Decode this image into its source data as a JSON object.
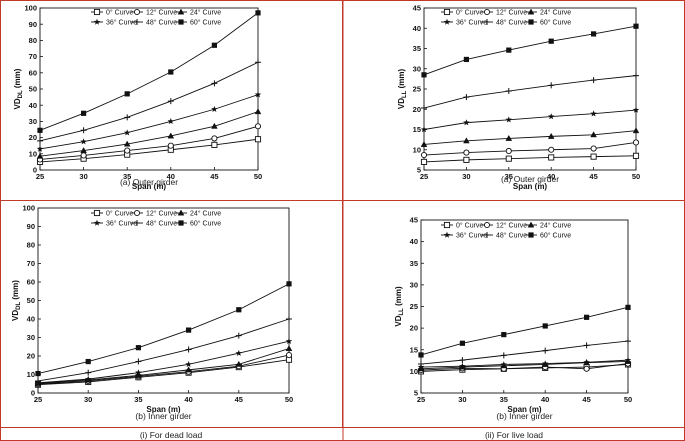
{
  "captions": {
    "dead_load": "(i) For dead load",
    "live_load": "(ii) For live load"
  },
  "chart_data": [
    {
      "type": "line",
      "id": "dead-outer",
      "title": "(a) Outer girder",
      "xlabel": "Span (m)",
      "ylabel": "VD",
      "ylabel_sub": "DL",
      "ylabel_unit": " (mm)",
      "xlim": [
        25,
        50
      ],
      "ylim": [
        0,
        100
      ],
      "xticks": [
        25,
        30,
        35,
        40,
        45,
        50
      ],
      "yticks": [
        0,
        10,
        20,
        30,
        40,
        50,
        60,
        70,
        80,
        90,
        100
      ],
      "x": [
        25,
        30,
        35,
        40,
        45,
        50
      ],
      "series": [
        {
          "name": "0° Curve",
          "marker": "square",
          "values": [
            5,
            7,
            9.5,
            12.5,
            15.5,
            19
          ]
        },
        {
          "name": "12° Curve",
          "marker": "circle",
          "values": [
            6.5,
            9,
            12,
            15,
            19.5,
            27
          ]
        },
        {
          "name": "24° Curve",
          "marker": "triangle",
          "values": [
            8.5,
            12,
            16,
            21,
            27,
            36
          ]
        },
        {
          "name": "36° Curve",
          "marker": "star",
          "values": [
            13,
            17.5,
            23,
            30,
            37.5,
            46.5
          ]
        },
        {
          "name": "48° Curve",
          "marker": "plus",
          "values": [
            18,
            24.5,
            32.5,
            42.5,
            53.5,
            66.5
          ]
        },
        {
          "name": "60° Curve",
          "marker": "filled-square",
          "values": [
            24.5,
            35,
            47,
            60.5,
            77,
            97
          ]
        }
      ]
    },
    {
      "type": "line",
      "id": "live-outer",
      "title": "(a) Outer girder",
      "xlabel": "Span (m)",
      "ylabel": "VD",
      "ylabel_sub": "LL",
      "ylabel_unit": " (mm)",
      "xlim": [
        25,
        50
      ],
      "ylim": [
        5,
        45
      ],
      "xticks": [
        25,
        30,
        35,
        40,
        45,
        50
      ],
      "yticks": [
        5,
        10,
        15,
        20,
        25,
        30,
        35,
        40,
        45
      ],
      "x": [
        25,
        30,
        35,
        40,
        45,
        50
      ],
      "series": [
        {
          "name": "0° Curve",
          "marker": "square",
          "values": [
            7,
            7.5,
            7.8,
            8.1,
            8.3,
            8.5
          ]
        },
        {
          "name": "12° Curve",
          "marker": "circle",
          "values": [
            8.7,
            9.3,
            9.7,
            10,
            10.3,
            11.8
          ]
        },
        {
          "name": "24° Curve",
          "marker": "triangle",
          "values": [
            11.3,
            12.2,
            12.8,
            13.3,
            13.7,
            14.7
          ]
        },
        {
          "name": "36° Curve",
          "marker": "star",
          "values": [
            15,
            16.7,
            17.4,
            18.2,
            18.9,
            19.8
          ]
        },
        {
          "name": "48° Curve",
          "marker": "plus",
          "values": [
            20.3,
            23,
            24.5,
            25.9,
            27.2,
            28.3
          ]
        },
        {
          "name": "60° Curve",
          "marker": "filled-square",
          "values": [
            28.5,
            32.3,
            34.6,
            36.8,
            38.6,
            40.5
          ]
        }
      ]
    },
    {
      "type": "line",
      "id": "dead-inner",
      "title": "(b) Inner girder",
      "xlabel": "Span (m)",
      "ylabel": "VD",
      "ylabel_sub": "DL",
      "ylabel_unit": " (mm)",
      "xlim": [
        25,
        50
      ],
      "ylim": [
        0,
        100
      ],
      "xticks": [
        25,
        30,
        35,
        40,
        45,
        50
      ],
      "yticks": [
        0,
        10,
        20,
        30,
        40,
        50,
        60,
        70,
        80,
        90,
        100
      ],
      "x": [
        25,
        30,
        35,
        40,
        45,
        50
      ],
      "series": [
        {
          "name": "0° Curve",
          "marker": "square",
          "values": [
            4.5,
            6,
            8.5,
            11,
            14,
            18
          ]
        },
        {
          "name": "12° Curve",
          "marker": "circle",
          "values": [
            4.8,
            6.5,
            9,
            11.5,
            14.5,
            20.5
          ]
        },
        {
          "name": "24° Curve",
          "marker": "triangle",
          "values": [
            5.2,
            7,
            9.5,
            12.5,
            15.5,
            24
          ]
        },
        {
          "name": "36° Curve",
          "marker": "star",
          "values": [
            5.5,
            7.5,
            11,
            15.5,
            21.5,
            28
          ]
        },
        {
          "name": "48° Curve",
          "marker": "plus",
          "values": [
            6.5,
            11,
            17,
            23.5,
            31,
            40
          ]
        },
        {
          "name": "60° Curve",
          "marker": "filled-square",
          "values": [
            10.5,
            17,
            24.5,
            34,
            45,
            59
          ]
        }
      ]
    },
    {
      "type": "line",
      "id": "live-inner",
      "title": "(b) Inner girder",
      "xlabel": "Span (m)",
      "ylabel": "VD",
      "ylabel_sub": "LL",
      "ylabel_unit": " (mm)",
      "xlim": [
        25,
        50
      ],
      "ylim": [
        5,
        45
      ],
      "xticks": [
        25,
        30,
        35,
        40,
        45,
        50
      ],
      "yticks": [
        5,
        10,
        15,
        20,
        25,
        30,
        35,
        40,
        45
      ],
      "x": [
        25,
        30,
        35,
        40,
        45,
        50
      ],
      "series": [
        {
          "name": "0° Curve",
          "marker": "square",
          "values": [
            10,
            10.4,
            10.6,
            10.8,
            11,
            11.6
          ]
        },
        {
          "name": "12° Curve",
          "marker": "circle",
          "values": [
            10.3,
            10.7,
            10.6,
            11,
            10.6,
            11.8
          ]
        },
        {
          "name": "24° Curve",
          "marker": "triangle",
          "values": [
            10.6,
            11,
            11.3,
            11.6,
            12,
            12.3
          ]
        },
        {
          "name": "36° Curve",
          "marker": "star",
          "values": [
            11,
            11.2,
            11.6,
            11.8,
            12.1,
            12.6
          ]
        },
        {
          "name": "48° Curve",
          "marker": "plus",
          "values": [
            11.7,
            12.6,
            13.7,
            14.8,
            16,
            17
          ]
        },
        {
          "name": "60° Curve",
          "marker": "filled-square",
          "values": [
            13.8,
            16.5,
            18.5,
            20.5,
            22.5,
            24.8
          ]
        }
      ]
    }
  ]
}
